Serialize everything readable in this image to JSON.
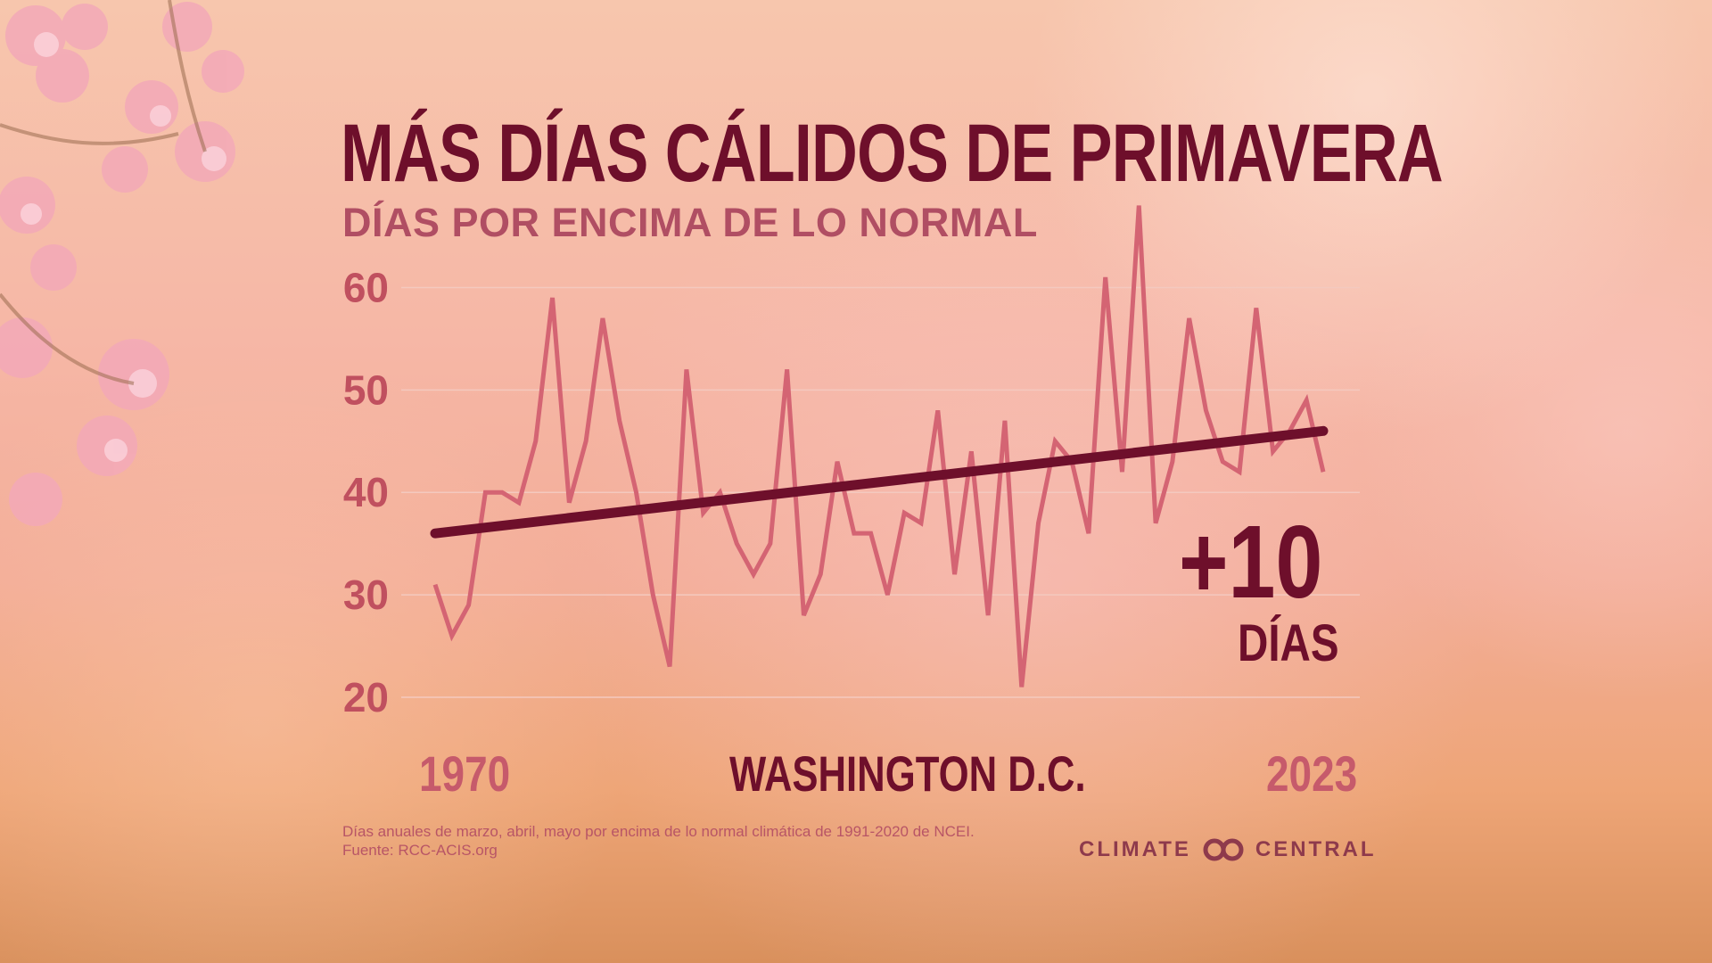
{
  "title": "MÁS DÍAS CÁLIDOS DE PRIMAVERA",
  "subtitle": "DÍAS POR ENCIMA DE LO NORMAL",
  "location": "WASHINGTON D.C.",
  "change": {
    "value": "+10",
    "unit": "DÍAS"
  },
  "footnote": {
    "line1": "Días anuales de marzo, abril, mayo por encima de lo normal climática de 1991-2020 de NCEI.",
    "line2": "Fuente: RCC-ACIS.org"
  },
  "logo": {
    "left_text": "CLIMATE",
    "right_text": "CENTRAL",
    "icon": "linked-rings-icon"
  },
  "colors": {
    "title": "#6e0f2b",
    "series_line": "#d46473",
    "trend_line": "#6e0f2b",
    "tick_label": "#c0505f",
    "gridline": "#f4c9bf"
  },
  "chart_data": {
    "type": "line",
    "title": "MÁS DÍAS CÁLIDOS DE PRIMAVERA",
    "subtitle": "DÍAS POR ENCIMA DE LO NORMAL",
    "xlabel": "",
    "ylabel": "",
    "x_start_label": "1970",
    "x_end_label": "2023",
    "xlim": [
      1970,
      2023
    ],
    "ylim": [
      20,
      65
    ],
    "yticks": [
      20,
      30,
      40,
      50,
      60
    ],
    "grid": true,
    "x": [
      1970,
      1971,
      1972,
      1973,
      1974,
      1975,
      1976,
      1977,
      1978,
      1979,
      1980,
      1981,
      1982,
      1983,
      1984,
      1985,
      1986,
      1987,
      1988,
      1989,
      1990,
      1991,
      1992,
      1993,
      1994,
      1995,
      1996,
      1997,
      1998,
      1999,
      2000,
      2001,
      2002,
      2003,
      2004,
      2005,
      2006,
      2007,
      2008,
      2009,
      2010,
      2011,
      2012,
      2013,
      2014,
      2015,
      2016,
      2017,
      2018,
      2019,
      2020,
      2021,
      2022,
      2023
    ],
    "series": [
      {
        "values": [
          31,
          26,
          29,
          40,
          40,
          39,
          45,
          59,
          39,
          45,
          57,
          47,
          40,
          30,
          23,
          52,
          38,
          40,
          35,
          32,
          35,
          52,
          28,
          32,
          43,
          36,
          36,
          30,
          38,
          37,
          48,
          32,
          44,
          28,
          47,
          21,
          37,
          45,
          43,
          36,
          61,
          42,
          68,
          37,
          43,
          57,
          48,
          43,
          42,
          58,
          44,
          46,
          49,
          42
        ]
      }
    ],
    "trend": {
      "start": [
        1970,
        36
      ],
      "end": [
        2023,
        46
      ],
      "change_label": "+10",
      "change_unit": "DÍAS"
    }
  }
}
